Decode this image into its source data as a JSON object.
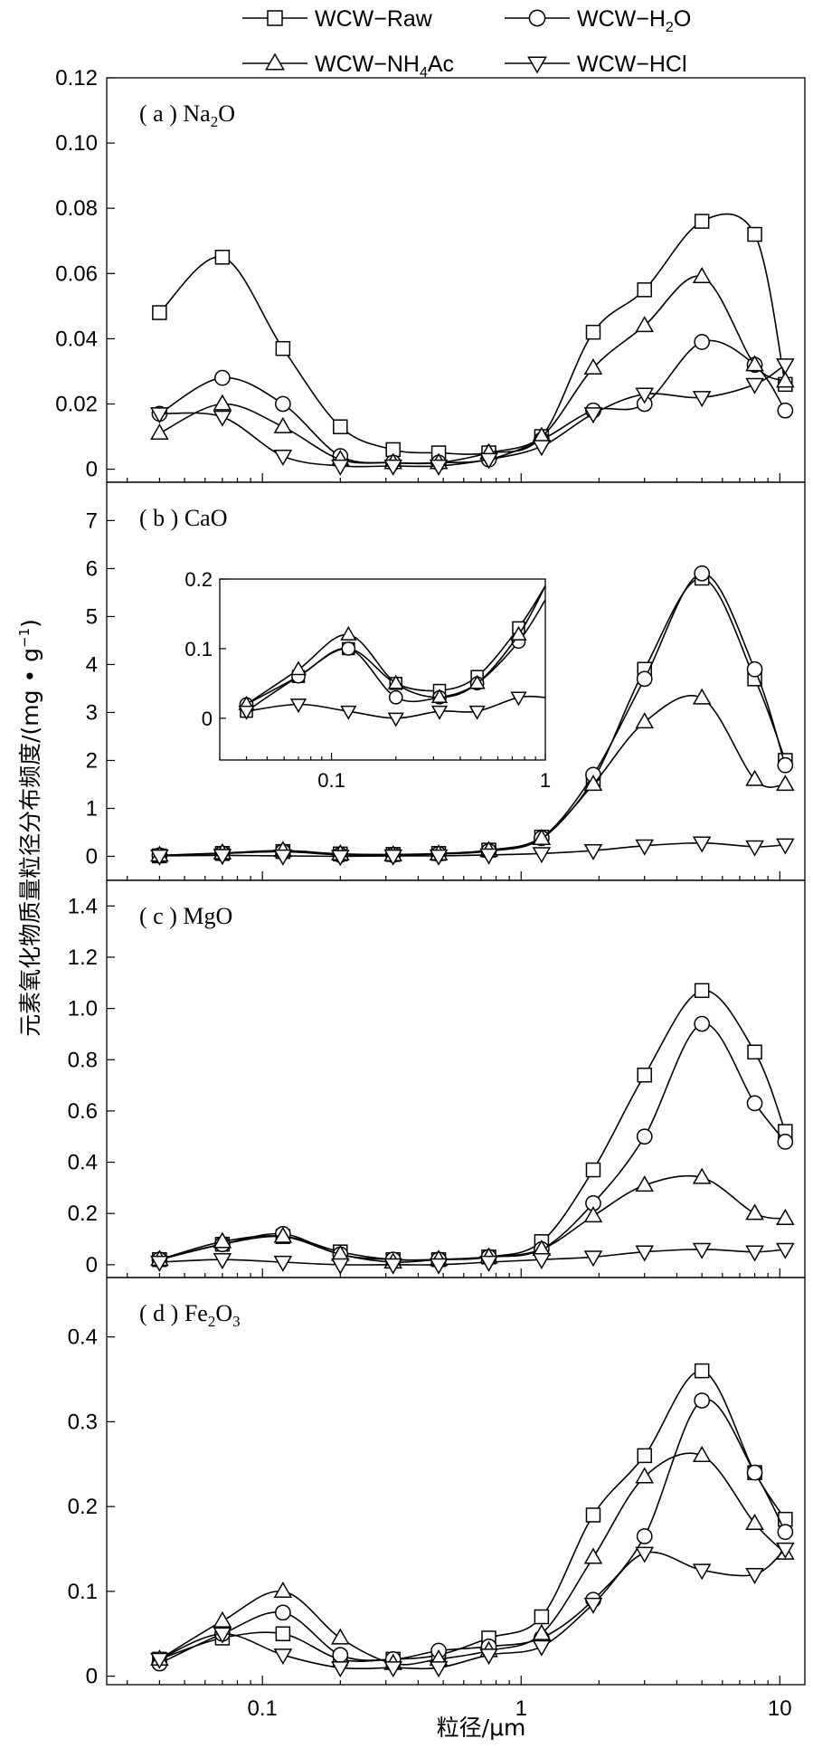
{
  "legend": [
    {
      "name": "WCW−Raw",
      "marker": "square",
      "sub": ""
    },
    {
      "name": "WCW−H",
      "marker": "circle",
      "sub": "2",
      "tail": "O"
    },
    {
      "name": "WCW−NH",
      "marker": "triangle-up",
      "sub": "4",
      "tail": "Ac"
    },
    {
      "name": "WCW−HCl",
      "marker": "triangle-down",
      "sub": ""
    }
  ],
  "xlabel": "粒径/μm",
  "ylabel": "元素氧化物质量粒径分布频度/(mg • g",
  "ylabel_sup": "−1",
  "ylabel_tail": ")",
  "x_ticks": [
    {
      "v": 0.1,
      "label": "0.1"
    },
    {
      "v": 1,
      "label": "1"
    },
    {
      "v": 10,
      "label": "10"
    }
  ],
  "chart_data": [
    {
      "type": "line",
      "label_main": "( a ) Na",
      "label_sub": "2",
      "label_tail": "O",
      "xscale": "log",
      "ylim": [
        -0.004,
        0.12
      ],
      "yticks": [
        "0",
        "0.02",
        "0.04",
        "0.06",
        "0.08",
        "0.10",
        "0.12"
      ],
      "ytick_values": [
        0,
        0.02,
        0.04,
        0.06,
        0.08,
        0.1,
        0.12
      ],
      "series": [
        {
          "marker": "square",
          "x": [
            0.04,
            0.07,
            0.12,
            0.2,
            0.32,
            0.48,
            0.75,
            1.2,
            1.9,
            3.0,
            5.0,
            8.0,
            10.5
          ],
          "y": [
            0.048,
            0.065,
            0.037,
            0.013,
            0.006,
            0.005,
            0.005,
            0.01,
            0.042,
            0.055,
            0.076,
            0.072,
            0.026
          ]
        },
        {
          "marker": "circle",
          "x": [
            0.04,
            0.07,
            0.12,
            0.2,
            0.32,
            0.48,
            0.75,
            1.2,
            1.9,
            3.0,
            5.0,
            8.0,
            10.5
          ],
          "y": [
            0.017,
            0.028,
            0.02,
            0.004,
            0.002,
            0.002,
            0.003,
            0.009,
            0.018,
            0.02,
            0.039,
            0.032,
            0.018
          ]
        },
        {
          "marker": "triangle-up",
          "x": [
            0.04,
            0.07,
            0.12,
            0.2,
            0.32,
            0.48,
            0.75,
            1.2,
            1.9,
            3.0,
            5.0,
            8.0,
            10.5
          ],
          "y": [
            0.011,
            0.02,
            0.013,
            0.003,
            0.002,
            0.002,
            0.005,
            0.01,
            0.031,
            0.044,
            0.059,
            0.032,
            0.027
          ]
        },
        {
          "marker": "triangle-down",
          "x": [
            0.04,
            0.07,
            0.12,
            0.2,
            0.32,
            0.48,
            0.75,
            1.2,
            1.9,
            3.0,
            5.0,
            8.0,
            10.5
          ],
          "y": [
            0.017,
            0.016,
            0.004,
            0.001,
            0.001,
            0.001,
            0.003,
            0.007,
            0.017,
            0.023,
            0.022,
            0.026,
            0.032
          ]
        }
      ]
    },
    {
      "type": "line",
      "label_main": "( b ) CaO",
      "label_sub": "",
      "label_tail": "",
      "xscale": "log",
      "ylim": [
        -0.5,
        7.8
      ],
      "yticks": [
        "0",
        "1",
        "2",
        "3",
        "4",
        "5",
        "6",
        "7"
      ],
      "ytick_values": [
        0,
        1,
        2,
        3,
        4,
        5,
        6,
        7
      ],
      "series": [
        {
          "marker": "square",
          "x": [
            0.04,
            0.07,
            0.12,
            0.2,
            0.32,
            0.48,
            0.75,
            1.2,
            1.9,
            3.0,
            5.0,
            8.0,
            10.5
          ],
          "y": [
            0.01,
            0.06,
            0.1,
            0.05,
            0.04,
            0.06,
            0.13,
            0.4,
            1.6,
            3.9,
            5.8,
            3.7,
            2.0
          ]
        },
        {
          "marker": "circle",
          "x": [
            0.04,
            0.07,
            0.12,
            0.2,
            0.32,
            0.48,
            0.75,
            1.2,
            1.9,
            3.0,
            5.0,
            8.0,
            10.5
          ],
          "y": [
            0.02,
            0.06,
            0.1,
            0.03,
            0.03,
            0.05,
            0.11,
            0.38,
            1.7,
            3.7,
            5.9,
            3.9,
            1.9
          ]
        },
        {
          "marker": "triangle-up",
          "x": [
            0.04,
            0.07,
            0.12,
            0.2,
            0.32,
            0.48,
            0.75,
            1.2,
            1.9,
            3.0,
            5.0,
            8.0,
            10.5
          ],
          "y": [
            0.02,
            0.07,
            0.12,
            0.05,
            0.03,
            0.05,
            0.12,
            0.37,
            1.5,
            2.8,
            3.3,
            1.6,
            1.5
          ]
        },
        {
          "marker": "triangle-down",
          "x": [
            0.04,
            0.07,
            0.12,
            0.2,
            0.32,
            0.48,
            0.75,
            1.2,
            1.9,
            3.0,
            5.0,
            8.0,
            10.5
          ],
          "y": [
            0.01,
            0.02,
            0.01,
            0.0,
            0.01,
            0.01,
            0.03,
            0.06,
            0.12,
            0.22,
            0.28,
            0.2,
            0.24
          ]
        }
      ],
      "inset": {
        "xlim": [
          0.03,
          1
        ],
        "ylim": [
          -0.06,
          0.2
        ],
        "yticks": [
          "0",
          "0.1",
          "0.2"
        ],
        "ytick_values": [
          0,
          0.1,
          0.2
        ],
        "xticks": [
          {
            "v": 0.1,
            "label": "0.1"
          },
          {
            "v": 1,
            "label": "1"
          }
        ],
        "series": [
          {
            "marker": "square",
            "x": [
              0.04,
              0.07,
              0.12,
              0.2,
              0.32,
              0.48,
              0.75,
              1.0
            ],
            "y": [
              0.01,
              0.06,
              0.1,
              0.05,
              0.04,
              0.06,
              0.13,
              0.19
            ]
          },
          {
            "marker": "circle",
            "x": [
              0.04,
              0.07,
              0.12,
              0.2,
              0.32,
              0.48,
              0.75,
              1.0
            ],
            "y": [
              0.02,
              0.06,
              0.1,
              0.03,
              0.03,
              0.05,
              0.11,
              0.17
            ]
          },
          {
            "marker": "triangle-up",
            "x": [
              0.04,
              0.07,
              0.12,
              0.2,
              0.32,
              0.48,
              0.75,
              1.0
            ],
            "y": [
              0.02,
              0.07,
              0.12,
              0.05,
              0.03,
              0.05,
              0.12,
              0.19
            ]
          },
          {
            "marker": "triangle-down",
            "x": [
              0.04,
              0.07,
              0.12,
              0.2,
              0.32,
              0.48,
              0.75,
              1.0
            ],
            "y": [
              0.01,
              0.02,
              0.01,
              0.0,
              0.01,
              0.01,
              0.03,
              0.03
            ]
          }
        ]
      }
    },
    {
      "type": "line",
      "label_main": "( c ) MgO",
      "label_sub": "",
      "label_tail": "",
      "xscale": "log",
      "ylim": [
        -0.05,
        1.5
      ],
      "yticks": [
        "0",
        "0.2",
        "0.4",
        "0.6",
        "0.8",
        "1.0",
        "1.2",
        "1.4"
      ],
      "ytick_values": [
        0,
        0.2,
        0.4,
        0.6,
        0.8,
        1.0,
        1.2,
        1.4
      ],
      "series": [
        {
          "marker": "square",
          "x": [
            0.04,
            0.07,
            0.12,
            0.2,
            0.32,
            0.48,
            0.75,
            1.2,
            1.9,
            3.0,
            5.0,
            8.0,
            10.5
          ],
          "y": [
            0.02,
            0.08,
            0.11,
            0.05,
            0.02,
            0.02,
            0.03,
            0.09,
            0.37,
            0.74,
            1.07,
            0.83,
            0.52
          ]
        },
        {
          "marker": "circle",
          "x": [
            0.04,
            0.07,
            0.12,
            0.2,
            0.32,
            0.48,
            0.75,
            1.2,
            1.9,
            3.0,
            5.0,
            8.0,
            10.5
          ],
          "y": [
            0.02,
            0.08,
            0.12,
            0.04,
            0.02,
            0.02,
            0.03,
            0.06,
            0.24,
            0.5,
            0.94,
            0.63,
            0.48
          ]
        },
        {
          "marker": "triangle-up",
          "x": [
            0.04,
            0.07,
            0.12,
            0.2,
            0.32,
            0.48,
            0.75,
            1.2,
            1.9,
            3.0,
            5.0,
            8.0,
            10.5
          ],
          "y": [
            0.02,
            0.09,
            0.11,
            0.04,
            0.01,
            0.02,
            0.03,
            0.06,
            0.19,
            0.31,
            0.34,
            0.2,
            0.18
          ]
        },
        {
          "marker": "triangle-down",
          "x": [
            0.04,
            0.07,
            0.12,
            0.2,
            0.32,
            0.48,
            0.75,
            1.2,
            1.9,
            3.0,
            5.0,
            8.0,
            10.5
          ],
          "y": [
            0.01,
            0.02,
            0.01,
            0.0,
            0.0,
            0.0,
            0.01,
            0.02,
            0.03,
            0.05,
            0.06,
            0.05,
            0.06
          ]
        }
      ]
    },
    {
      "type": "line",
      "label_main": "( d ) Fe",
      "label_sub": "2",
      "label_tail": "O",
      "label_sub2": "3",
      "xscale": "log",
      "ylim": [
        -0.01,
        0.47
      ],
      "yticks": [
        "0",
        "0.1",
        "0.2",
        "0.3",
        "0.4"
      ],
      "ytick_values": [
        0,
        0.1,
        0.2,
        0.3,
        0.4
      ],
      "series": [
        {
          "marker": "square",
          "x": [
            0.04,
            0.07,
            0.12,
            0.2,
            0.32,
            0.48,
            0.75,
            1.2,
            1.9,
            3.0,
            5.0,
            8.0,
            10.5
          ],
          "y": [
            0.02,
            0.045,
            0.05,
            0.02,
            0.02,
            0.025,
            0.045,
            0.07,
            0.19,
            0.26,
            0.36,
            0.24,
            0.185
          ]
        },
        {
          "marker": "circle",
          "x": [
            0.04,
            0.07,
            0.12,
            0.2,
            0.32,
            0.48,
            0.75,
            1.2,
            1.9,
            3.0,
            5.0,
            8.0,
            10.5
          ],
          "y": [
            0.015,
            0.05,
            0.075,
            0.025,
            0.02,
            0.03,
            0.035,
            0.045,
            0.09,
            0.165,
            0.325,
            0.24,
            0.17
          ]
        },
        {
          "marker": "triangle-up",
          "x": [
            0.04,
            0.07,
            0.12,
            0.2,
            0.32,
            0.48,
            0.75,
            1.2,
            1.9,
            3.0,
            5.0,
            8.0,
            10.5
          ],
          "y": [
            0.02,
            0.065,
            0.1,
            0.045,
            0.015,
            0.02,
            0.03,
            0.05,
            0.14,
            0.235,
            0.26,
            0.18,
            0.145
          ]
        },
        {
          "marker": "triangle-down",
          "x": [
            0.04,
            0.07,
            0.12,
            0.2,
            0.32,
            0.48,
            0.75,
            1.2,
            1.9,
            3.0,
            5.0,
            8.0,
            10.5
          ],
          "y": [
            0.02,
            0.05,
            0.025,
            0.01,
            0.01,
            0.01,
            0.025,
            0.035,
            0.085,
            0.145,
            0.125,
            0.12,
            0.15
          ]
        }
      ]
    }
  ]
}
